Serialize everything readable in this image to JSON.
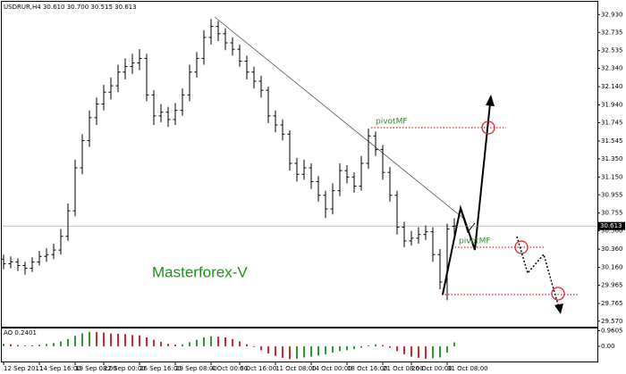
{
  "chart_data": {
    "type": "ohlc",
    "header": "USDRUR,H4 30.610 30.700 30.515 30.613",
    "color": "#000000",
    "categories": [
      "12 Sep 2011",
      null,
      null,
      null,
      null,
      "14 Sep 16:00",
      null,
      null,
      null,
      null,
      "19 Sep 08:00",
      null,
      null,
      null,
      "22 Sep 00:00",
      null,
      null,
      null,
      null,
      "26 Sep 16:00",
      null,
      null,
      null,
      null,
      "29 Sep 08:00",
      null,
      null,
      null,
      null,
      "4 Oct 00:00",
      null,
      null,
      null,
      "6 Oct 16:00",
      null,
      null,
      null,
      null,
      "11 Oct 08:00",
      null,
      null,
      null,
      null,
      "14 Oct 00:00",
      null,
      null,
      null,
      null,
      "18 Oct 16:00",
      null,
      null,
      null,
      null,
      "21 Oct 08:00",
      null,
      null,
      null,
      "26 Oct 00:00",
      null,
      null,
      null,
      null,
      "31 Oct 08:00",
      null
    ],
    "ohlc": [
      [
        30.25,
        30.3,
        30.14,
        30.2
      ],
      [
        30.2,
        30.28,
        30.15,
        30.22
      ],
      [
        30.22,
        30.26,
        30.12,
        30.18
      ],
      [
        30.18,
        30.22,
        30.08,
        30.15
      ],
      [
        30.15,
        30.27,
        30.11,
        30.22
      ],
      [
        30.22,
        30.34,
        30.18,
        30.28
      ],
      [
        30.28,
        30.37,
        30.22,
        30.3
      ],
      [
        30.3,
        30.42,
        30.25,
        30.35
      ],
      [
        30.35,
        30.58,
        30.3,
        30.5
      ],
      [
        30.5,
        30.86,
        30.45,
        30.78
      ],
      [
        30.78,
        31.34,
        30.72,
        31.25
      ],
      [
        31.25,
        31.62,
        31.18,
        31.55
      ],
      [
        31.55,
        31.88,
        31.48,
        31.8
      ],
      [
        31.8,
        32.02,
        31.72,
        31.95
      ],
      [
        31.95,
        32.16,
        31.88,
        32.08
      ],
      [
        32.08,
        32.24,
        32.0,
        32.15
      ],
      [
        32.15,
        32.38,
        32.08,
        32.3
      ],
      [
        32.3,
        32.45,
        32.22,
        32.36
      ],
      [
        32.36,
        32.5,
        32.28,
        32.4
      ],
      [
        32.4,
        32.55,
        32.32,
        32.45
      ],
      [
        32.45,
        32.5,
        31.98,
        32.05
      ],
      [
        32.05,
        32.1,
        31.72,
        31.82
      ],
      [
        31.82,
        31.95,
        31.75,
        31.86
      ],
      [
        31.86,
        31.92,
        31.7,
        31.78
      ],
      [
        31.78,
        31.96,
        31.72,
        31.88
      ],
      [
        31.88,
        32.12,
        31.82,
        32.05
      ],
      [
        32.05,
        32.38,
        31.98,
        32.3
      ],
      [
        32.3,
        32.52,
        32.24,
        32.45
      ],
      [
        32.45,
        32.76,
        32.38,
        32.68
      ],
      [
        32.68,
        32.88,
        32.6,
        32.8
      ],
      [
        32.8,
        32.86,
        32.64,
        32.72
      ],
      [
        32.72,
        32.78,
        32.54,
        32.62
      ],
      [
        32.62,
        32.68,
        32.48,
        32.55
      ],
      [
        32.55,
        32.6,
        32.36,
        32.42
      ],
      [
        32.42,
        32.48,
        32.22,
        32.3
      ],
      [
        32.3,
        32.36,
        32.12,
        32.2
      ],
      [
        32.2,
        32.26,
        32.02,
        32.1
      ],
      [
        32.1,
        32.14,
        31.74,
        31.82
      ],
      [
        31.82,
        31.88,
        31.64,
        31.72
      ],
      [
        31.72,
        31.78,
        31.55,
        31.62
      ],
      [
        31.62,
        31.66,
        31.22,
        31.3
      ],
      [
        31.3,
        31.36,
        31.1,
        31.18
      ],
      [
        31.18,
        31.34,
        31.12,
        31.25
      ],
      [
        31.25,
        31.3,
        31.02,
        31.1
      ],
      [
        31.1,
        31.16,
        30.88,
        30.95
      ],
      [
        30.95,
        31.0,
        30.7,
        30.8
      ],
      [
        30.8,
        31.08,
        30.74,
        31.0
      ],
      [
        31.0,
        31.3,
        30.94,
        31.22
      ],
      [
        31.22,
        31.28,
        31.08,
        31.15
      ],
      [
        31.15,
        31.2,
        30.98,
        31.05
      ],
      [
        31.05,
        31.38,
        31.0,
        31.3
      ],
      [
        31.3,
        31.68,
        31.24,
        31.6
      ],
      [
        31.6,
        31.65,
        31.38,
        31.45
      ],
      [
        31.45,
        31.5,
        31.12,
        31.2
      ],
      [
        31.2,
        31.26,
        30.88,
        30.95
      ],
      [
        30.95,
        31.0,
        30.52,
        30.6
      ],
      [
        30.6,
        30.66,
        30.38,
        30.45
      ],
      [
        30.45,
        30.56,
        30.4,
        30.48
      ],
      [
        30.48,
        30.6,
        30.42,
        30.52
      ],
      [
        30.52,
        30.62,
        30.46,
        30.55
      ],
      [
        30.55,
        30.6,
        30.22,
        30.3
      ],
      [
        30.3,
        30.36,
        29.92,
        30.0
      ],
      [
        30.0,
        30.64,
        29.8,
        30.58
      ],
      [
        30.61,
        30.7,
        30.515,
        30.613
      ]
    ],
    "ylim": [
      29.51,
      33.07
    ],
    "yticks": [
      {
        "value": 32.93,
        "label": "32.930"
      },
      32.735,
      32.535,
      {
        "value": 32.34,
        "label": "32.340"
      },
      {
        "value": 32.14,
        "label": "32.140"
      },
      {
        "value": 31.94,
        "label": "31.940"
      },
      31.745,
      31.545,
      {
        "value": 31.35,
        "label": "31.350"
      },
      {
        "value": 31.15,
        "label": "31.150"
      },
      30.955,
      30.755,
      {
        "value": 30.56,
        "label": "30.560"
      },
      {
        "value": 30.36,
        "label": "30.360"
      },
      {
        "value": 30.16,
        "label": "30.160"
      },
      29.965,
      29.765,
      {
        "value": 29.57,
        "label": "29.570"
      }
    ],
    "last_price": 30.613,
    "ao": {
      "label": "AO 0.2401",
      "up_color": "#2e9a2e",
      "down_color": "#d9242b",
      "values": [
        0.15,
        0.12,
        0.08,
        0.05,
        0.06,
        0.1,
        0.14,
        0.2,
        0.3,
        0.45,
        0.65,
        0.8,
        0.9,
        0.88,
        0.85,
        0.8,
        0.78,
        0.75,
        0.7,
        0.68,
        0.55,
        0.4,
        0.28,
        0.15,
        0.1,
        0.12,
        0.25,
        0.4,
        0.55,
        0.62,
        0.6,
        0.55,
        0.45,
        0.3,
        0.12,
        -0.05,
        -0.25,
        -0.45,
        -0.6,
        -0.72,
        -0.8,
        -0.78,
        -0.7,
        -0.65,
        -0.58,
        -0.5,
        -0.4,
        -0.3,
        -0.25,
        -0.18,
        -0.1,
        0.05,
        0.12,
        0.08,
        -0.1,
        -0.3,
        -0.5,
        -0.65,
        -0.72,
        -0.78,
        -0.75,
        -0.7,
        -0.4,
        0.2401
      ],
      "ylim": [
        -0.95,
        1.05
      ],
      "yticks": [
        0.9605,
        {
          "value": 0,
          "label": "0.00"
        }
      ]
    },
    "annotations": {
      "watermark": "Masterforex-V",
      "pivot_labels": [
        "pivotMF",
        "pivotMF"
      ]
    }
  }
}
